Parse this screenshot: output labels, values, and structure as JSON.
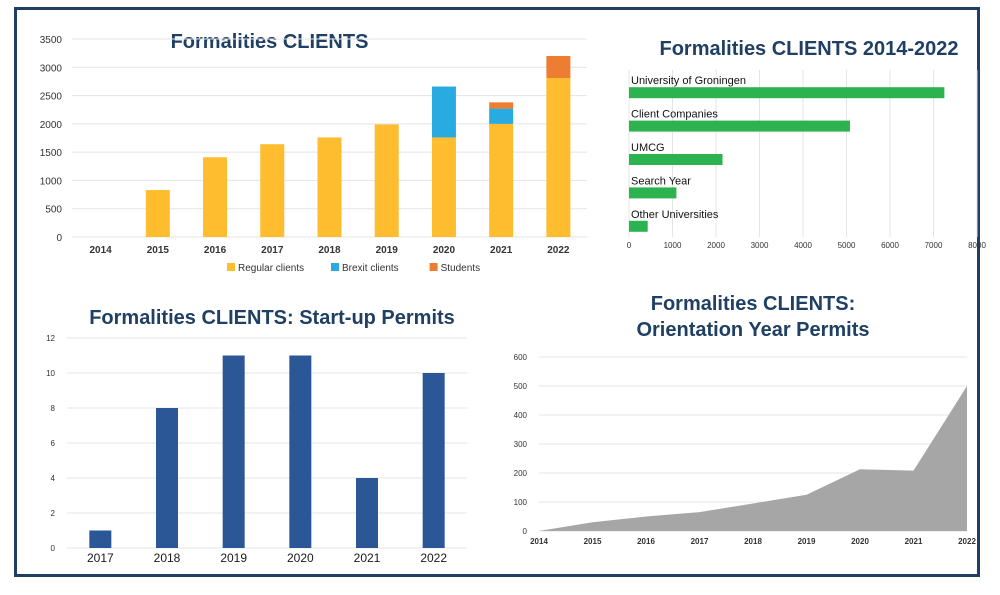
{
  "chart_data": [
    {
      "id": "clients",
      "type": "bar",
      "stacked": true,
      "title": "Formalities CLIENTS",
      "categories": [
        "2014",
        "2015",
        "2016",
        "2017",
        "2018",
        "2019",
        "2020",
        "2021",
        "2022"
      ],
      "series": [
        {
          "name": "Regular clients",
          "color": "#fdbd2e",
          "values": [
            0,
            830,
            1410,
            1640,
            1760,
            1990,
            1760,
            2000,
            2810
          ]
        },
        {
          "name": "Brexit clients",
          "color": "#29abe2",
          "values": [
            0,
            0,
            0,
            0,
            0,
            0,
            900,
            270,
            0
          ]
        },
        {
          "name": "Students",
          "color": "#ed7d31",
          "values": [
            0,
            0,
            0,
            0,
            0,
            0,
            0,
            110,
            390
          ]
        }
      ],
      "ylim": [
        0,
        3500
      ],
      "yticks": [
        0,
        500,
        1000,
        1500,
        2000,
        2500,
        3000,
        3500
      ],
      "legend": "bottom"
    },
    {
      "id": "clients-2014-2022",
      "type": "bar",
      "orientation": "horizontal",
      "title": "Formalities CLIENTS 2014-2022",
      "categories": [
        "University of Groningen",
        "Client Companies",
        "UMCG",
        "Search Year",
        "Other Universities"
      ],
      "values": [
        7250,
        5080,
        2150,
        1090,
        430
      ],
      "color": "#2cb350",
      "xlim": [
        0,
        8000
      ],
      "xticks": [
        0,
        1000,
        2000,
        3000,
        4000,
        5000,
        6000,
        7000,
        8000
      ]
    },
    {
      "id": "startup-permits",
      "type": "bar",
      "title": "Formalities CLIENTS: Start-up Permits",
      "categories": [
        "2017",
        "2018",
        "2019",
        "2020",
        "2021",
        "2022"
      ],
      "values": [
        1,
        8,
        11,
        11,
        4,
        10
      ],
      "color": "#2b5797",
      "ylim": [
        0,
        12
      ],
      "yticks": [
        0,
        2,
        4,
        6,
        8,
        10,
        12
      ]
    },
    {
      "id": "orientation-permits",
      "type": "area",
      "title_lines": [
        "Formalities CLIENTS:",
        "Orientation Year Permits"
      ],
      "x": [
        "2014",
        "2015",
        "2016",
        "2017",
        "2018",
        "2019",
        "2020",
        "2021",
        "2022"
      ],
      "values": [
        0,
        30,
        50,
        65,
        95,
        125,
        213,
        208,
        500
      ],
      "color": "#a6a6a6",
      "ylim": [
        0,
        600
      ],
      "yticks": [
        0,
        100,
        200,
        300,
        400,
        500,
        600
      ]
    }
  ]
}
